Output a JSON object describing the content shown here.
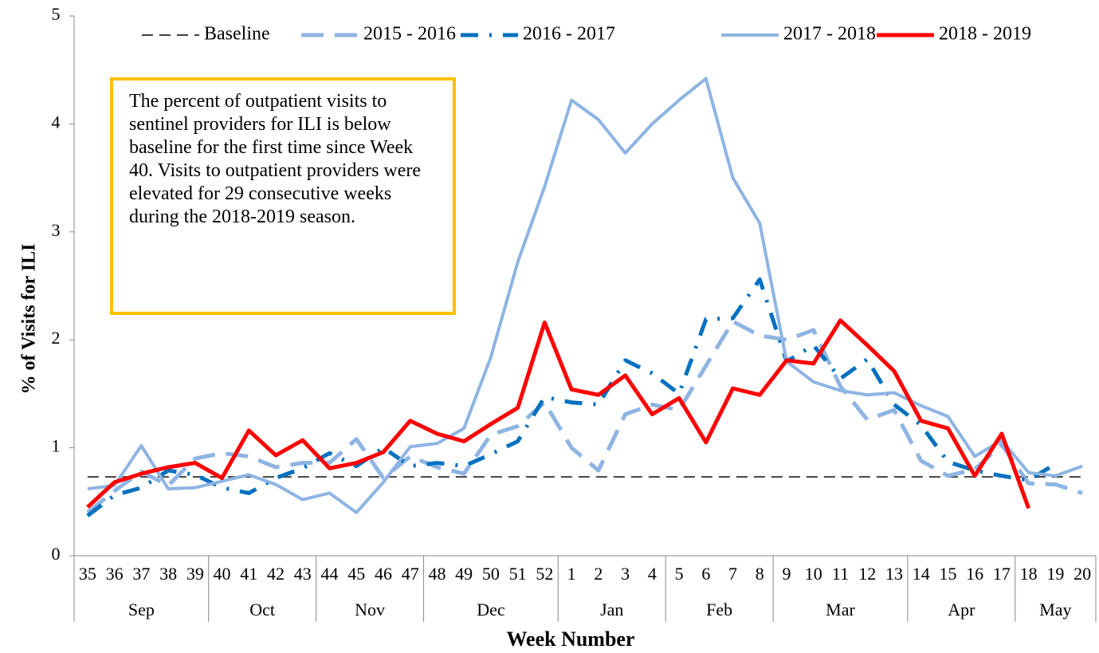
{
  "chart_data": {
    "type": "line",
    "xlabel": "Week Number",
    "ylabel": "% of Visits for ILI",
    "annotation": "The percent of outpatient visits to sentinel providers for ILI is below baseline for the first time since Week 40. Visits to outpatient providers were elevated for 29 consecutive weeks during the 2018-2019 season.",
    "categories": [
      "35",
      "36",
      "37",
      "38",
      "39",
      "40",
      "41",
      "42",
      "43",
      "44",
      "45",
      "46",
      "47",
      "48",
      "49",
      "50",
      "51",
      "52",
      "1",
      "2",
      "3",
      "4",
      "5",
      "6",
      "7",
      "8",
      "9",
      "10",
      "11",
      "12",
      "13",
      "14",
      "15",
      "16",
      "17",
      "18",
      "19",
      "20"
    ],
    "x_groups": [
      {
        "label": "Sep",
        "weeks": 5
      },
      {
        "label": "Oct",
        "weeks": 4
      },
      {
        "label": "Nov",
        "weeks": 4
      },
      {
        "label": "Dec",
        "weeks": 5
      },
      {
        "label": "Jan",
        "weeks": 4
      },
      {
        "label": "Feb",
        "weeks": 4
      },
      {
        "label": "Mar",
        "weeks": 5
      },
      {
        "label": "Apr",
        "weeks": 4
      },
      {
        "label": "May",
        "weeks": 3
      }
    ],
    "ylim": [
      0,
      5
    ],
    "yticks": [
      0,
      1,
      2,
      3,
      4,
      5
    ],
    "grid": false,
    "legend": "top",
    "series": [
      {
        "name": "Baseline",
        "color": "#404040",
        "dash": "14 8",
        "width": 2,
        "values": [
          0.73,
          0.73,
          0.73,
          0.73,
          0.73,
          0.73,
          0.73,
          0.73,
          0.73,
          0.73,
          0.73,
          0.73,
          0.73,
          0.73,
          0.73,
          0.73,
          0.73,
          0.73,
          0.73,
          0.73,
          0.73,
          0.73,
          0.73,
          0.73,
          0.73,
          0.73,
          0.73,
          0.73,
          0.73,
          0.73,
          0.73,
          0.73,
          0.73,
          0.73,
          0.73,
          0.73,
          0.73,
          0.73
        ]
      },
      {
        "name": "2015 - 2016",
        "color": "#8eb4e3",
        "dash": "28 14",
        "width": 5,
        "values": [
          0.4,
          0.6,
          0.78,
          0.65,
          0.9,
          0.95,
          0.92,
          0.82,
          0.86,
          0.86,
          1.08,
          0.72,
          0.92,
          0.82,
          0.76,
          1.12,
          1.2,
          1.42,
          1.0,
          0.79,
          1.31,
          1.4,
          1.35,
          1.76,
          2.17,
          2.04,
          2.0,
          2.09,
          1.57,
          1.26,
          1.35,
          0.88,
          0.74,
          0.8,
          1.03,
          0.67,
          0.66,
          0.58
        ]
      },
      {
        "name": "2016 - 2017",
        "color": "#0070c0",
        "dash": "22 14 3 14",
        "width": 5,
        "values": [
          0.37,
          0.56,
          0.63,
          0.79,
          0.75,
          0.63,
          0.58,
          0.72,
          0.81,
          0.95,
          0.83,
          1.0,
          0.83,
          0.86,
          0.83,
          0.94,
          1.06,
          1.47,
          1.42,
          1.4,
          1.81,
          1.69,
          1.5,
          2.19,
          2.2,
          2.56,
          1.8,
          1.95,
          1.64,
          1.82,
          1.4,
          1.21,
          0.87,
          0.79,
          0.74,
          0.7,
          0.85,
          null
        ]
      },
      {
        "name": "2017 - 2018",
        "color": "#8eb4e3",
        "dash": "none",
        "width": 4,
        "values": [
          0.62,
          0.65,
          1.02,
          0.62,
          0.63,
          0.69,
          0.75,
          0.66,
          0.52,
          0.58,
          0.4,
          0.68,
          1.01,
          1.04,
          1.18,
          1.84,
          2.72,
          3.42,
          4.22,
          4.04,
          3.73,
          4.0,
          4.22,
          4.42,
          3.5,
          3.08,
          1.8,
          1.61,
          1.53,
          1.49,
          1.51,
          1.39,
          1.29,
          0.92,
          1.07,
          0.77,
          0.74,
          0.83
        ]
      },
      {
        "name": "2018 - 2019",
        "color": "#ff0000",
        "dash": "none",
        "width": 5,
        "values": [
          0.45,
          0.68,
          0.76,
          0.82,
          0.86,
          0.72,
          1.16,
          0.93,
          1.07,
          0.81,
          0.86,
          0.96,
          1.25,
          1.13,
          1.06,
          1.22,
          1.37,
          2.16,
          1.54,
          1.49,
          1.67,
          1.31,
          1.46,
          1.05,
          1.55,
          1.49,
          1.81,
          1.78,
          2.18,
          1.95,
          1.71,
          1.25,
          1.18,
          0.74,
          1.13,
          0.44,
          null,
          null
        ]
      }
    ]
  }
}
